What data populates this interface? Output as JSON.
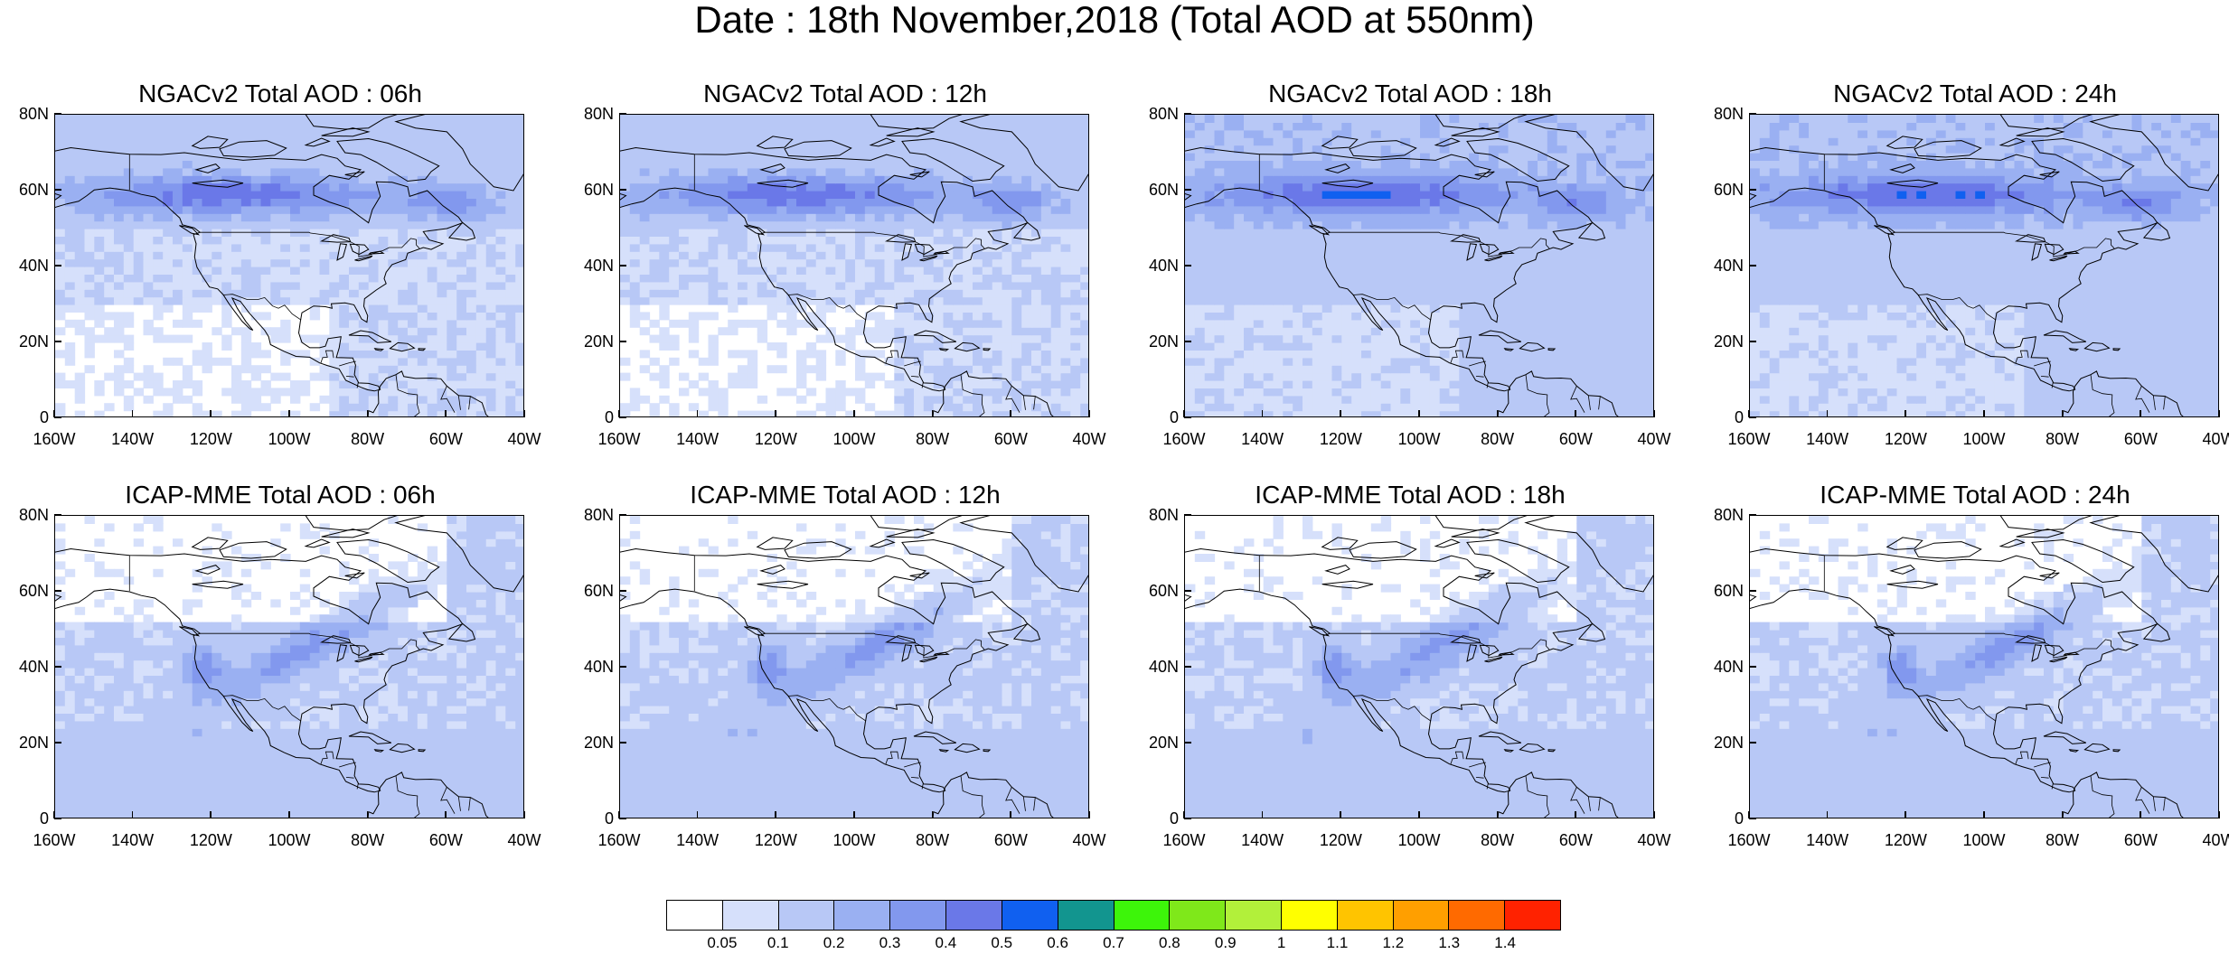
{
  "title": "Date : 18th November,2018 (Total AOD at 550nm)",
  "panels": [
    {
      "title": "NGACv2 Total AOD : 06h",
      "model": "NGACv2",
      "hour": "06h"
    },
    {
      "title": "NGACv2 Total AOD : 12h",
      "model": "NGACv2",
      "hour": "12h"
    },
    {
      "title": "NGACv2 Total AOD : 18h",
      "model": "NGACv2",
      "hour": "18h"
    },
    {
      "title": "NGACv2 Total AOD : 24h",
      "model": "NGACv2",
      "hour": "24h"
    },
    {
      "title": "ICAP-MME Total AOD : 06h",
      "model": "ICAP-MME",
      "hour": "06h"
    },
    {
      "title": "ICAP-MME Total AOD : 12h",
      "model": "ICAP-MME",
      "hour": "12h"
    },
    {
      "title": "ICAP-MME Total AOD : 18h",
      "model": "ICAP-MME",
      "hour": "18h"
    },
    {
      "title": "ICAP-MME Total AOD : 24h",
      "model": "ICAP-MME",
      "hour": "24h"
    }
  ],
  "lat_ticks": [
    "80N",
    "60N",
    "40N",
    "20N",
    "0"
  ],
  "lon_ticks": [
    "160W",
    "140W",
    "120W",
    "100W",
    "80W",
    "60W",
    "40W"
  ],
  "colorbar": {
    "labels": [
      "0.05",
      "0.1",
      "0.2",
      "0.3",
      "0.4",
      "0.5",
      "0.6",
      "0.7",
      "0.8",
      "0.9",
      "1",
      "1.1",
      "1.2",
      "1.3",
      "1.4"
    ],
    "colors": [
      "#ffffff",
      "#d6e0fb",
      "#b8c8f6",
      "#9ab0f2",
      "#8298ee",
      "#6a78e8",
      "#1060f0",
      "#12958f",
      "#3df50a",
      "#7fe81a",
      "#b2f03a",
      "#ffff00",
      "#ffc400",
      "#ff9f00",
      "#ff6a00",
      "#ff2200"
    ]
  }
}
